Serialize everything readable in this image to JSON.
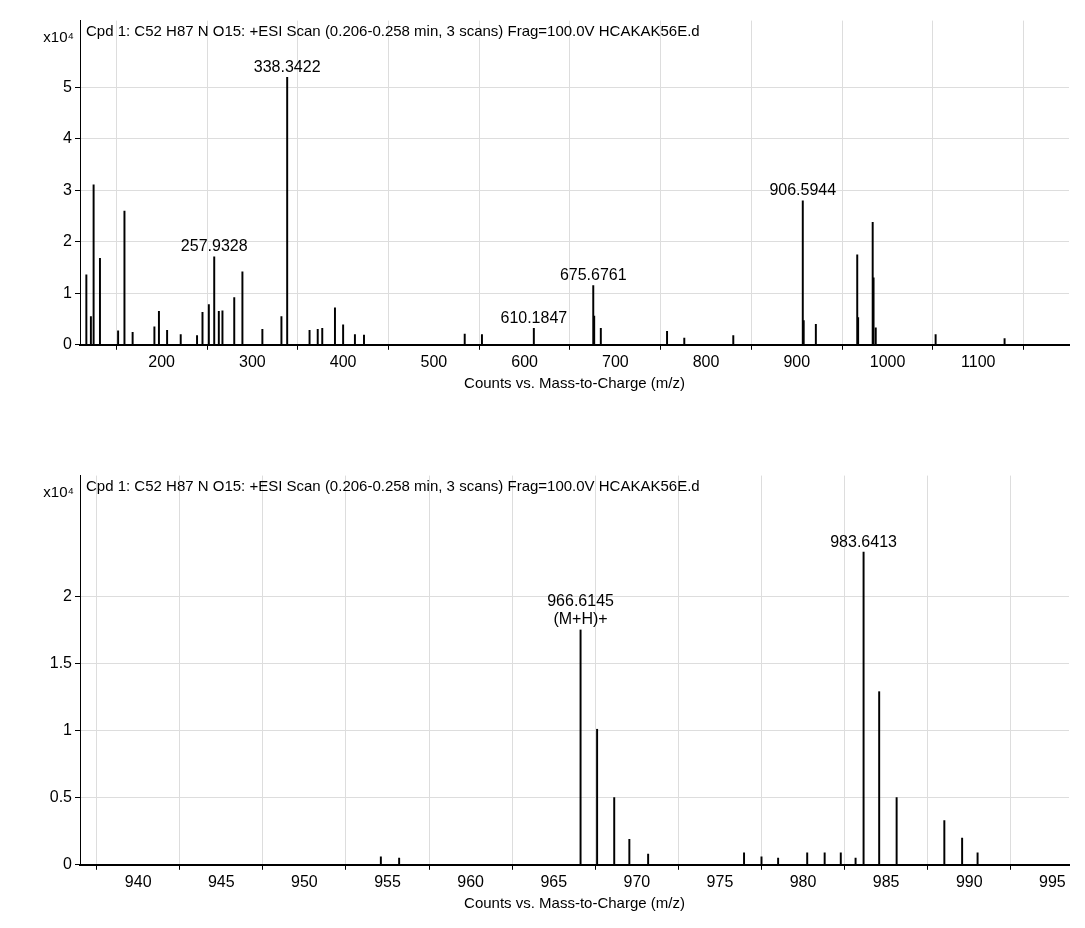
{
  "chart_data": [
    {
      "type": "bar",
      "title": "Cpd 1: C52 H87 N O15: +ESI Scan (0.206-0.258 min, 3 scans) Frag=100.0V HCAKAK56E.d",
      "xlabel": "Counts vs. Mass-to-Charge (m/z)",
      "ylabel": "x10⁴",
      "x": [
        117,
        122,
        125,
        132,
        152,
        159,
        168,
        192,
        197,
        206,
        221,
        239,
        245,
        252,
        257.9328,
        263,
        267,
        280,
        289,
        311,
        332,
        338.3422,
        363,
        372,
        377,
        391,
        400,
        413,
        423,
        534,
        553,
        610.1847,
        675.6761,
        676.7,
        684,
        757,
        776,
        830,
        906.5944,
        907.6,
        921,
        966.6145,
        967.6,
        983.6413,
        984.6,
        987,
        1053,
        1129
      ],
      "series": [
        {
          "color": "#000000",
          "values": [
            1.36,
            0.55,
            3.11,
            1.68,
            0.27,
            2.6,
            0.24,
            0.35,
            0.65,
            0.28,
            0.2,
            0.18,
            0.63,
            0.78,
            1.71,
            0.65,
            0.66,
            0.92,
            1.42,
            0.3,
            0.55,
            5.2,
            0.28,
            0.3,
            0.32,
            0.72,
            0.39,
            0.2,
            0.19,
            0.21,
            0.2,
            0.32,
            1.15,
            0.56,
            0.32,
            0.26,
            0.13,
            0.18,
            2.8,
            0.47,
            0.4,
            1.75,
            0.53,
            2.38,
            1.3,
            0.33,
            0.2,
            0.12
          ]
        }
      ],
      "xlim": [
        110,
        1200
      ],
      "xticks": [
        200,
        300,
        400,
        500,
        600,
        700,
        800,
        900,
        1000,
        1100
      ],
      "ylim": [
        0,
        6.3
      ],
      "yticks": [
        0,
        1,
        2,
        3,
        4,
        5
      ],
      "grid": true,
      "annotations": [
        {
          "text": "338.3422",
          "x": 338.3422,
          "y": 5.2
        },
        {
          "text": "257.9328",
          "x": 257.9328,
          "y": 1.71
        },
        {
          "text": "610.1847",
          "x": 610.1847,
          "y": 0.32
        },
        {
          "text": "675.6761",
          "x": 675.6761,
          "y": 1.15
        },
        {
          "text": "906.5944",
          "x": 906.5944,
          "y": 2.8
        }
      ]
    },
    {
      "type": "bar",
      "title": "Cpd 1: C52 H87 N O15: +ESI Scan (0.206-0.258 min, 3 scans) Frag=100.0V HCAKAK56E.d",
      "xlabel": "Counts vs. Mass-to-Charge (m/z)",
      "ylabel": "x10⁴",
      "x": [
        954.6,
        955.7,
        966.6145,
        967.61,
        968.64,
        969.55,
        970.68,
        976.45,
        977.5,
        978.5,
        980.25,
        981.3,
        982.27,
        983.16,
        983.6413,
        984.58,
        985.63,
        988.5,
        989.57,
        990.5
      ],
      "series": [
        {
          "color": "#000000",
          "values": [
            0.06,
            0.05,
            1.75,
            1.01,
            0.5,
            0.19,
            0.08,
            0.09,
            0.06,
            0.05,
            0.09,
            0.09,
            0.09,
            0.05,
            2.33,
            1.29,
            0.5,
            0.33,
            0.2,
            0.09
          ]
        }
      ],
      "xlim": [
        936.5,
        996
      ],
      "xticks": [
        940,
        945,
        950,
        955,
        960,
        965,
        970,
        975,
        980,
        985,
        990,
        995
      ],
      "ylim": [
        0,
        2.9
      ],
      "yticks": [
        0,
        0.5,
        1,
        1.5,
        2
      ],
      "grid": true,
      "annotations": [
        {
          "text": "966.6145\n(M+H)+",
          "x": 966.6145,
          "y": 1.75
        },
        {
          "text": "983.6413",
          "x": 983.6413,
          "y": 2.33
        }
      ]
    }
  ]
}
